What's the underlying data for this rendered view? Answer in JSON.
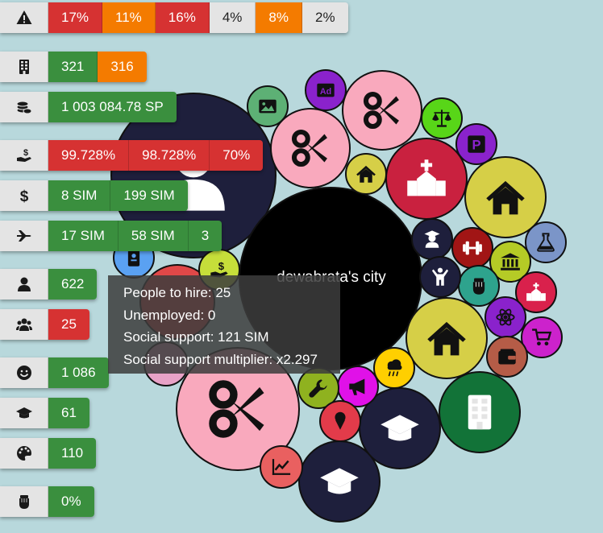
{
  "city_name": "dewabrata's city",
  "stats": [
    {
      "icon": "warning-icon",
      "cells": [
        {
          "text": "17%",
          "color": "red"
        },
        {
          "text": "11%",
          "color": "orange"
        },
        {
          "text": "16%",
          "color": "red"
        },
        {
          "text": "4%",
          "color": "white"
        },
        {
          "text": "8%",
          "color": "orange"
        },
        {
          "text": "2%",
          "color": "white"
        }
      ]
    },
    {
      "icon": "building-icon",
      "cells": [
        {
          "text": "321",
          "color": "green"
        },
        {
          "text": "316",
          "color": "orange"
        }
      ]
    },
    {
      "icon": "coins-icon",
      "cells": [
        {
          "text": "1 003 084.78 SP",
          "color": "green"
        }
      ]
    },
    {
      "icon": "hand-money-icon",
      "cells": [
        {
          "text": "99.728%",
          "color": "red"
        },
        {
          "text": "98.728%",
          "color": "red"
        },
        {
          "text": "70%",
          "color": "red"
        }
      ]
    },
    {
      "icon": "dollar-icon",
      "cells": [
        {
          "text": "8 SIM",
          "color": "green"
        },
        {
          "text": "199 SIM",
          "color": "green"
        }
      ]
    },
    {
      "icon": "plane-icon",
      "cells": [
        {
          "text": "17 SIM",
          "color": "green"
        },
        {
          "text": "58 SIM",
          "color": "green"
        },
        {
          "text": "3",
          "color": "green"
        }
      ]
    },
    {
      "icon": "user-icon",
      "cells": [
        {
          "text": "622",
          "color": "green"
        }
      ]
    },
    {
      "icon": "users-icon",
      "cells": [
        {
          "text": "25",
          "color": "red"
        }
      ]
    },
    {
      "icon": "smile-icon",
      "cells": [
        {
          "text": "1 086",
          "color": "green"
        }
      ]
    },
    {
      "icon": "graduation-cap-icon",
      "cells": [
        {
          "text": "61",
          "color": "green"
        }
      ]
    },
    {
      "icon": "palette-icon",
      "cells": [
        {
          "text": "110",
          "color": "green"
        }
      ]
    },
    {
      "icon": "fist-icon",
      "cells": [
        {
          "text": "0%",
          "color": "green"
        }
      ]
    }
  ],
  "tooltip": {
    "line1": "People to hire: 25",
    "line2": "Unemployed: 0",
    "line3": "Social support: 121 SIM",
    "line4": "Social support multiplier: x2.297"
  },
  "bubbles": [
    {
      "name": "residents",
      "color": "#1e1f3c",
      "icon": "user-icon"
    },
    {
      "name": "city",
      "color": "#000000",
      "icon": "none"
    },
    {
      "name": "barber-large",
      "color": "#f9a9bd",
      "icon": "scissors-icon"
    },
    {
      "name": "barber-medium",
      "color": "#f9a9bd",
      "icon": "scissors-icon"
    },
    {
      "name": "barber-top",
      "color": "#f9a9bd",
      "icon": "scissors-icon"
    },
    {
      "name": "church-large",
      "color": "#c9213f",
      "icon": "church-icon"
    },
    {
      "name": "house-large",
      "color": "#d6cf47",
      "icon": "house-icon"
    },
    {
      "name": "house-center",
      "color": "#d6cf47",
      "icon": "house-icon"
    },
    {
      "name": "house-small",
      "color": "#d6cf47",
      "icon": "house-icon"
    },
    {
      "name": "office",
      "color": "#127338",
      "icon": "building-icon"
    },
    {
      "name": "school-bottom",
      "color": "#1e1f3c",
      "icon": "graduation-cap-icon"
    },
    {
      "name": "school-middle",
      "color": "#1e1f3c",
      "icon": "graduation-cap-icon"
    },
    {
      "name": "picture",
      "color": "#5db075",
      "icon": "image-icon"
    },
    {
      "name": "advert",
      "color": "#8a22cc",
      "icon": "ad-icon"
    },
    {
      "name": "justice",
      "color": "#58d618",
      "icon": "scale-icon"
    },
    {
      "name": "parking",
      "color": "#8a22cc",
      "icon": "parking-icon"
    },
    {
      "name": "lab",
      "color": "#7b95c8",
      "icon": "flask-icon"
    },
    {
      "name": "gym",
      "color": "#a11515",
      "icon": "dumbbell-icon"
    },
    {
      "name": "museum",
      "color": "#b5cb26",
      "icon": "museum-icon"
    },
    {
      "name": "chapel",
      "color": "#d9214c",
      "icon": "church-icon"
    },
    {
      "name": "protest",
      "color": "#2ea38d",
      "icon": "fist-icon"
    },
    {
      "name": "science",
      "color": "#8a22cc",
      "icon": "atom-icon"
    },
    {
      "name": "shop",
      "color": "#cc22cc",
      "icon": "cart-icon"
    },
    {
      "name": "bank",
      "color": "#b55c47",
      "icon": "wallet-icon"
    },
    {
      "name": "weather",
      "color": "#ffcf00",
      "icon": "rain-cloud-icon"
    },
    {
      "name": "megaphone",
      "color": "#e011e8",
      "icon": "megaphone-icon"
    },
    {
      "name": "repair",
      "color": "#8fb21f",
      "icon": "wrench-icon"
    },
    {
      "name": "icecream",
      "color": "#e23b4a",
      "icon": "ice-cream-icon"
    },
    {
      "name": "stocks",
      "color": "#e96060",
      "icon": "chart-icon"
    },
    {
      "name": "professor",
      "color": "#1e1f3c",
      "icon": "professor-icon"
    },
    {
      "name": "worker",
      "color": "#1e1f3c",
      "icon": "hand-up-icon"
    },
    {
      "name": "id-card",
      "color": "#5aa1f2",
      "icon": "id-card-icon"
    },
    {
      "name": "red-hidden",
      "color": "#e04848",
      "icon": "none"
    },
    {
      "name": "lime-hidden",
      "color": "#c6de3a",
      "icon": "hand-money-icon"
    },
    {
      "name": "pink-hidden",
      "color": "#e8a2c7",
      "icon": "none"
    }
  ]
}
